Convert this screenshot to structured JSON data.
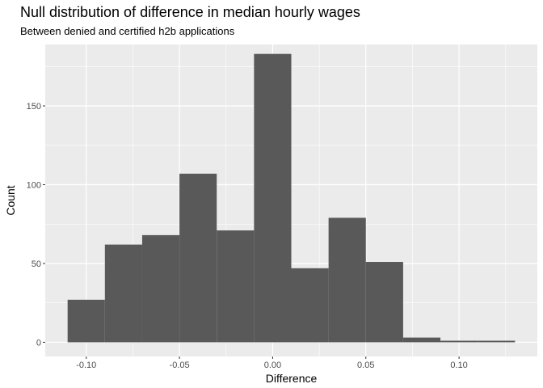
{
  "chart_data": {
    "type": "bar",
    "subtype": "histogram",
    "title": "Null distribution of difference in median hourly wages",
    "subtitle": "Between denied and certified h2b applications",
    "xlabel": "Difference",
    "ylabel": "Count",
    "xlim": [
      -0.122,
      0.142
    ],
    "ylim": [
      -9,
      189
    ],
    "x_ticks": [
      -0.1,
      -0.05,
      0.0,
      0.05,
      0.1
    ],
    "x_tick_labels": [
      "-0.10",
      "-0.05",
      "0.00",
      "0.05",
      "0.10"
    ],
    "y_ticks": [
      0,
      50,
      100,
      150
    ],
    "y_tick_labels": [
      "0",
      "50",
      "100",
      "150"
    ],
    "bin_width": 0.02,
    "bins": [
      {
        "x0": -0.11,
        "x1": -0.09,
        "count": 27
      },
      {
        "x0": -0.09,
        "x1": -0.07,
        "count": 62
      },
      {
        "x0": -0.07,
        "x1": -0.05,
        "count": 68
      },
      {
        "x0": -0.05,
        "x1": -0.03,
        "count": 107
      },
      {
        "x0": -0.03,
        "x1": -0.01,
        "count": 71
      },
      {
        "x0": -0.01,
        "x1": 0.01,
        "count": 183
      },
      {
        "x0": 0.01,
        "x1": 0.03,
        "count": 47
      },
      {
        "x0": 0.03,
        "x1": 0.05,
        "count": 79
      },
      {
        "x0": 0.05,
        "x1": 0.07,
        "count": 51
      },
      {
        "x0": 0.07,
        "x1": 0.09,
        "count": 3
      },
      {
        "x0": 0.09,
        "x1": 0.11,
        "count": 1
      },
      {
        "x0": 0.11,
        "x1": 0.13,
        "count": 1
      }
    ],
    "grid": true,
    "colors": {
      "panel_background": "#ebebeb",
      "grid_major": "#ffffff",
      "bar_fill": "#595959"
    }
  }
}
